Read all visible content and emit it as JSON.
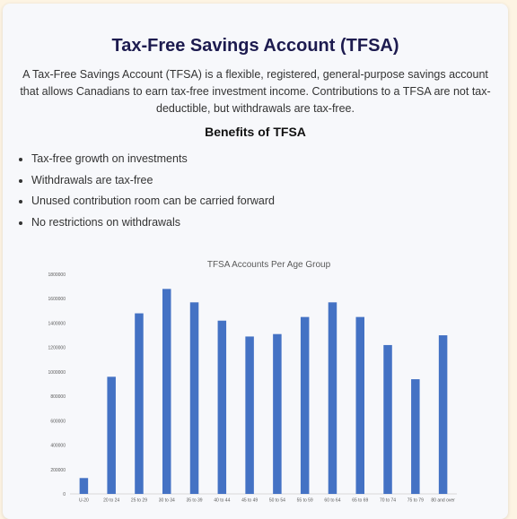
{
  "page": {
    "title": "Tax-Free Savings Account (TFSA)",
    "intro": "A Tax-Free Savings Account (TFSA) is a flexible, registered, general-purpose savings account that allows Canadians to earn tax-free investment income. Contributions to a TFSA are not tax-deductible, but withdrawals are tax-free.",
    "benefits_heading": "Benefits of TFSA",
    "benefits": [
      "Tax-free growth on investments",
      "Withdrawals are tax-free",
      "Unused contribution room can be carried forward",
      "No restrictions on withdrawals"
    ]
  },
  "chart_data": {
    "type": "bar",
    "title": "TFSA Accounts Per Age Group",
    "xlabel": "",
    "ylabel": "",
    "categories": [
      "U-20",
      "20 to 24",
      "25 to 29",
      "30 to 34",
      "35 to 39",
      "40 to 44",
      "45 to 49",
      "50 to 54",
      "55 to 59",
      "60 to 64",
      "65 to 69",
      "70 to 74",
      "75 to 79",
      "80 and over"
    ],
    "values": [
      130000,
      960000,
      1480000,
      1680000,
      1570000,
      1420000,
      1290000,
      1310000,
      1450000,
      1570000,
      1450000,
      1220000,
      940000,
      1300000
    ],
    "yticks": [
      "0",
      "200000",
      "400000",
      "600000",
      "800000",
      "1000000",
      "1200000",
      "1400000",
      "1600000",
      "1800000"
    ],
    "ylim": [
      0,
      1800000
    ],
    "grid": false,
    "bar_color": "#4472c4"
  }
}
